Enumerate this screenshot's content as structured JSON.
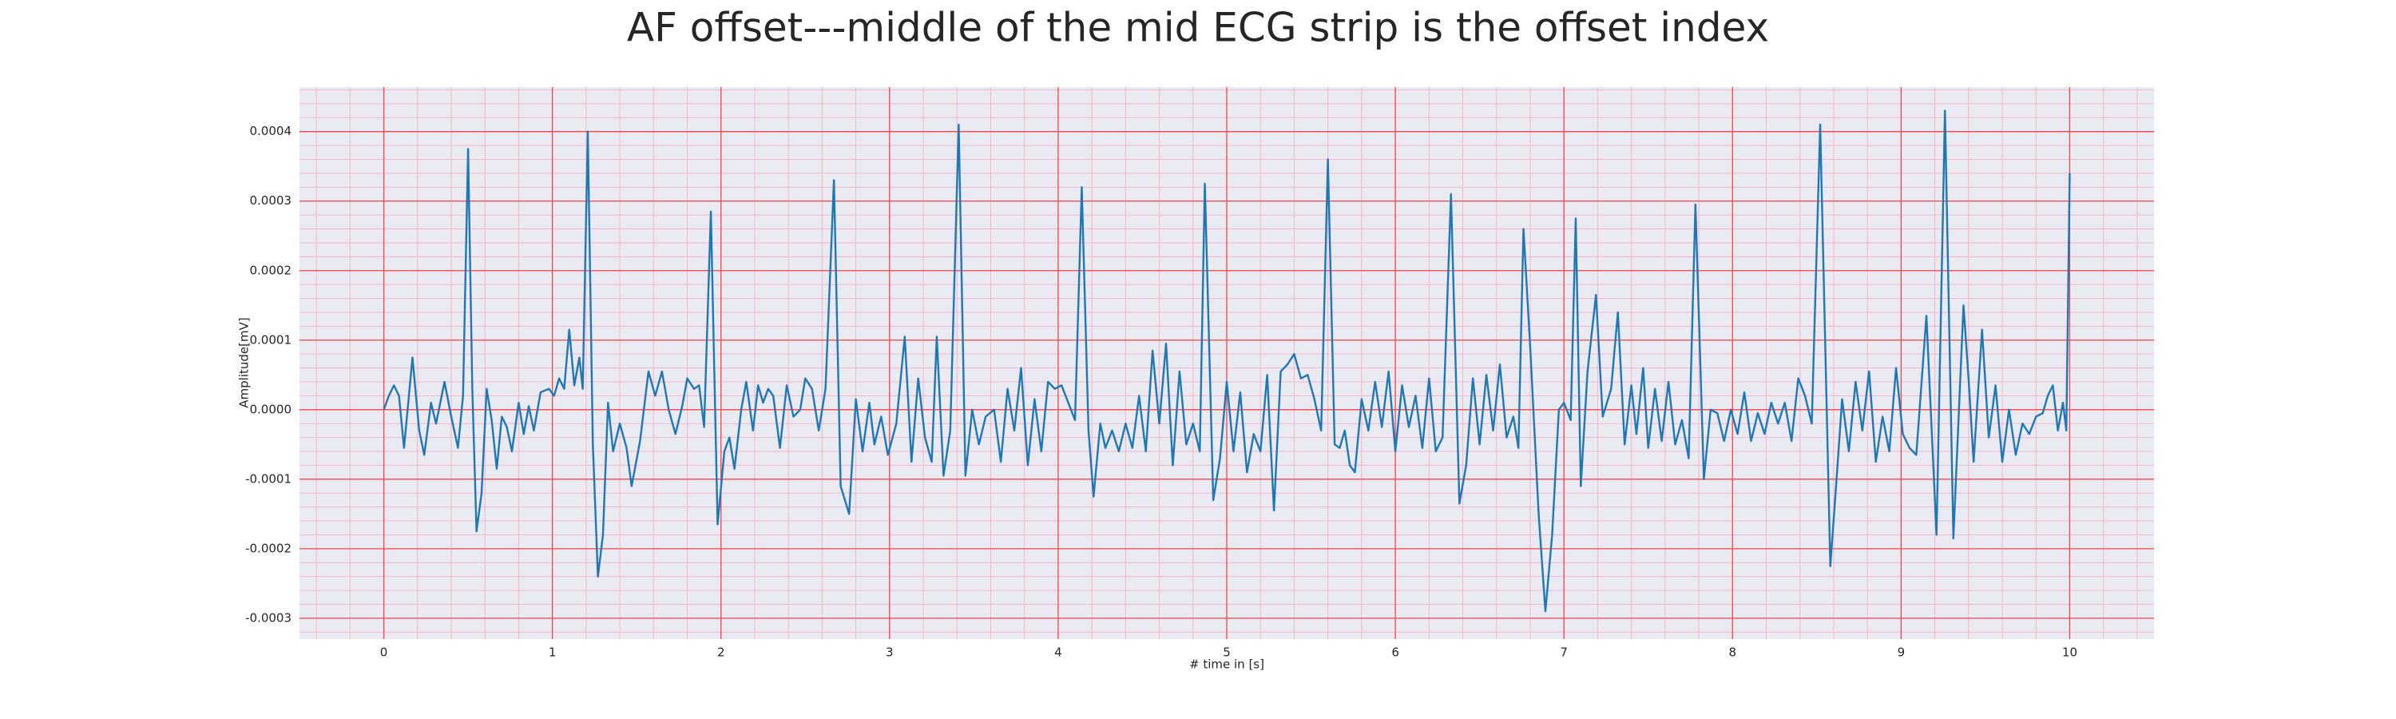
{
  "chart_data": {
    "type": "line",
    "title": "AF offset---middle of the mid ECG strip is the offset index",
    "xlabel": "# time in [s]",
    "ylabel": "Amplitude[mV]",
    "color": "#1f77b4",
    "grid": true,
    "xlim": [
      -0.5,
      10.5
    ],
    "xticks": [
      0,
      1,
      2,
      3,
      4,
      5,
      6,
      7,
      8,
      9,
      10
    ],
    "ylim": [
      -0.00033,
      0.000464
    ],
    "yticks": [
      -0.0003,
      -0.0002,
      -0.0001,
      {
        "value": 0,
        "label": "0.0000"
      },
      0.0001,
      0.0002,
      0.0003,
      0.0004
    ],
    "x": [
      0,
      0.03,
      0.06,
      0.09,
      0.12,
      0.17,
      0.21,
      0.24,
      0.28,
      0.31,
      0.36,
      0.4,
      0.44,
      0.47,
      0.5,
      0.525,
      0.55,
      0.58,
      0.61,
      0.64,
      0.67,
      0.7,
      0.73,
      0.76,
      0.8,
      0.83,
      0.86,
      0.89,
      0.93,
      0.98,
      1.01,
      1.04,
      1.07,
      1.1,
      1.13,
      1.16,
      1.18,
      1.21,
      1.24,
      1.27,
      1.3,
      1.33,
      1.36,
      1.4,
      1.44,
      1.47,
      1.52,
      1.57,
      1.61,
      1.65,
      1.69,
      1.73,
      1.77,
      1.8,
      1.84,
      1.87,
      1.9,
      1.94,
      1.98,
      2.02,
      2.05,
      2.08,
      2.12,
      2.15,
      2.19,
      2.22,
      2.25,
      2.28,
      2.31,
      2.35,
      2.39,
      2.43,
      2.47,
      2.5,
      2.54,
      2.58,
      2.62,
      2.67,
      2.71,
      2.76,
      2.8,
      2.84,
      2.88,
      2.91,
      2.95,
      2.99,
      3.04,
      3.09,
      3.13,
      3.17,
      3.21,
      3.25,
      3.28,
      3.32,
      3.36,
      3.41,
      3.45,
      3.49,
      3.53,
      3.57,
      3.62,
      3.66,
      3.7,
      3.74,
      3.78,
      3.82,
      3.86,
      3.9,
      3.94,
      3.98,
      4.02,
      4.06,
      4.1,
      4.14,
      4.18,
      4.21,
      4.25,
      4.28,
      4.32,
      4.36,
      4.4,
      4.44,
      4.48,
      4.52,
      4.56,
      4.6,
      4.64,
      4.68,
      4.72,
      4.76,
      4.8,
      4.84,
      4.87,
      4.92,
      4.96,
      5.0,
      5.04,
      5.08,
      5.12,
      5.16,
      5.2,
      5.24,
      5.28,
      5.32,
      5.36,
      5.4,
      5.44,
      5.48,
      5.52,
      5.56,
      5.6,
      5.64,
      5.67,
      5.7,
      5.73,
      5.76,
      5.8,
      5.84,
      5.88,
      5.92,
      5.96,
      6.0,
      6.04,
      6.08,
      6.12,
      6.16,
      6.2,
      6.24,
      6.28,
      6.33,
      6.38,
      6.42,
      6.46,
      6.5,
      6.54,
      6.58,
      6.62,
      6.66,
      6.7,
      6.73,
      6.76,
      6.8,
      6.85,
      6.89,
      6.93,
      6.97,
      7.0,
      7.04,
      7.07,
      7.1,
      7.14,
      7.19,
      7.23,
      7.28,
      7.32,
      7.36,
      7.4,
      7.43,
      7.47,
      7.5,
      7.54,
      7.58,
      7.62,
      7.66,
      7.7,
      7.74,
      7.78,
      7.83,
      7.87,
      7.91,
      7.95,
      7.99,
      8.03,
      8.07,
      8.11,
      8.15,
      8.19,
      8.23,
      8.27,
      8.31,
      8.35,
      8.39,
      8.43,
      8.47,
      8.52,
      8.58,
      8.62,
      8.65,
      8.69,
      8.73,
      8.77,
      8.81,
      8.85,
      8.89,
      8.93,
      8.97,
      9.01,
      9.05,
      9.09,
      9.15,
      9.21,
      9.26,
      9.31,
      9.37,
      9.4,
      9.43,
      9.48,
      9.52,
      9.56,
      9.6,
      9.64,
      9.68,
      9.72,
      9.76,
      9.8,
      9.84,
      9.87,
      9.9,
      9.93,
      9.96,
      9.98,
      10.0
    ],
    "values": [
      0,
      2e-05,
      3.5e-05,
      2e-05,
      -5.5e-05,
      7.5e-05,
      -3e-05,
      -6.5e-05,
      1e-05,
      -2e-05,
      4e-05,
      -1e-05,
      -5.5e-05,
      2e-05,
      0.000375,
      3e-05,
      -0.000175,
      -0.00012,
      3e-05,
      -1.5e-05,
      -8.5e-05,
      -1e-05,
      -2.5e-05,
      -6e-05,
      1e-05,
      -3.5e-05,
      5e-06,
      -3e-05,
      2.5e-05,
      3e-05,
      2e-05,
      4.5e-05,
      3e-05,
      0.000115,
      3.5e-05,
      7.5e-05,
      3e-05,
      0.0004,
      -5e-05,
      -0.00024,
      -0.00018,
      1e-05,
      -6e-05,
      -2e-05,
      -5.5e-05,
      -0.00011,
      -4.5e-05,
      5.5e-05,
      2e-05,
      5.5e-05,
      0,
      -3.5e-05,
      5e-06,
      4.5e-05,
      3e-05,
      3.5e-05,
      -2.5e-05,
      0.000285,
      -0.000165,
      -6e-05,
      -4e-05,
      -8.5e-05,
      0,
      4e-05,
      -3e-05,
      3.5e-05,
      1e-05,
      3e-05,
      2e-05,
      -5.5e-05,
      3.5e-05,
      -1e-05,
      0,
      4.5e-05,
      3e-05,
      -3e-05,
      3e-05,
      0.00033,
      -0.00011,
      -0.00015,
      1.5e-05,
      -6e-05,
      1e-05,
      -5e-05,
      -1e-05,
      -6.5e-05,
      -2e-05,
      0.000105,
      -7.5e-05,
      4.5e-05,
      -4e-05,
      -7.5e-05,
      0.000105,
      -9.5e-05,
      -3e-05,
      0.00041,
      -9.5e-05,
      0,
      -5e-05,
      -1e-05,
      0,
      -7.5e-05,
      3e-05,
      -3e-05,
      6e-05,
      -8e-05,
      1.5e-05,
      -6e-05,
      4e-05,
      3e-05,
      3.5e-05,
      1e-05,
      -1.5e-05,
      0.00032,
      -3e-05,
      -0.000125,
      -2e-05,
      -5.5e-05,
      -3e-05,
      -6e-05,
      -2e-05,
      -5.5e-05,
      2e-05,
      -6e-05,
      8.5e-05,
      -2e-05,
      9.5e-05,
      -8e-05,
      5.5e-05,
      -5e-05,
      -2e-05,
      -6e-05,
      0.000325,
      -0.00013,
      -7e-05,
      4e-05,
      -6e-05,
      2.5e-05,
      -9e-05,
      -3.5e-05,
      -6e-05,
      5e-05,
      -0.000145,
      5.5e-05,
      6.5e-05,
      8e-05,
      4.5e-05,
      5e-05,
      1.5e-05,
      -3e-05,
      0.00036,
      -5e-05,
      -5.5e-05,
      -3e-05,
      -8e-05,
      -9e-05,
      1.5e-05,
      -3e-05,
      4e-05,
      -2.5e-05,
      5.5e-05,
      -6e-05,
      3.5e-05,
      -2.5e-05,
      2e-05,
      -5.5e-05,
      4.5e-05,
      -6e-05,
      -4e-05,
      0.00031,
      -0.000135,
      -8e-05,
      4.5e-05,
      -5e-05,
      5e-05,
      -3e-05,
      6.5e-05,
      -4e-05,
      -1e-05,
      -5.5e-05,
      0.00026,
      9e-05,
      -0.00015,
      -0.00029,
      -0.00018,
      0,
      1e-05,
      -1.5e-05,
      0.000275,
      -0.00011,
      5.5e-05,
      0.000165,
      -1e-05,
      3e-05,
      0.00014,
      -5e-05,
      3.5e-05,
      -3.5e-05,
      6e-05,
      -5.5e-05,
      3e-05,
      -4.5e-05,
      4e-05,
      -5e-05,
      -1.5e-05,
      -7e-05,
      0.000295,
      -0.0001,
      0,
      -5e-06,
      -4.5e-05,
      0,
      -3.5e-05,
      2.5e-05,
      -4.5e-05,
      -5e-06,
      -3.5e-05,
      1e-05,
      -2e-05,
      1e-05,
      -4.5e-05,
      4.5e-05,
      2e-05,
      -2e-05,
      0.00041,
      -0.000225,
      -9e-05,
      1.5e-05,
      -6e-05,
      4e-05,
      -3e-05,
      5.5e-05,
      -7.5e-05,
      -1e-05,
      -6e-05,
      6e-05,
      -3.5e-05,
      -5.5e-05,
      -6.5e-05,
      0.000135,
      -0.00018,
      0.00043,
      -0.000185,
      0.00015,
      4.5e-05,
      -7.5e-05,
      0.000115,
      -4e-05,
      3.5e-05,
      -7.5e-05,
      0,
      -6.5e-05,
      -2e-05,
      -3.5e-05,
      -1e-05,
      -5e-06,
      2e-05,
      3.5e-05,
      -3e-05,
      1e-05,
      -3e-05,
      0.00034
    ]
  }
}
